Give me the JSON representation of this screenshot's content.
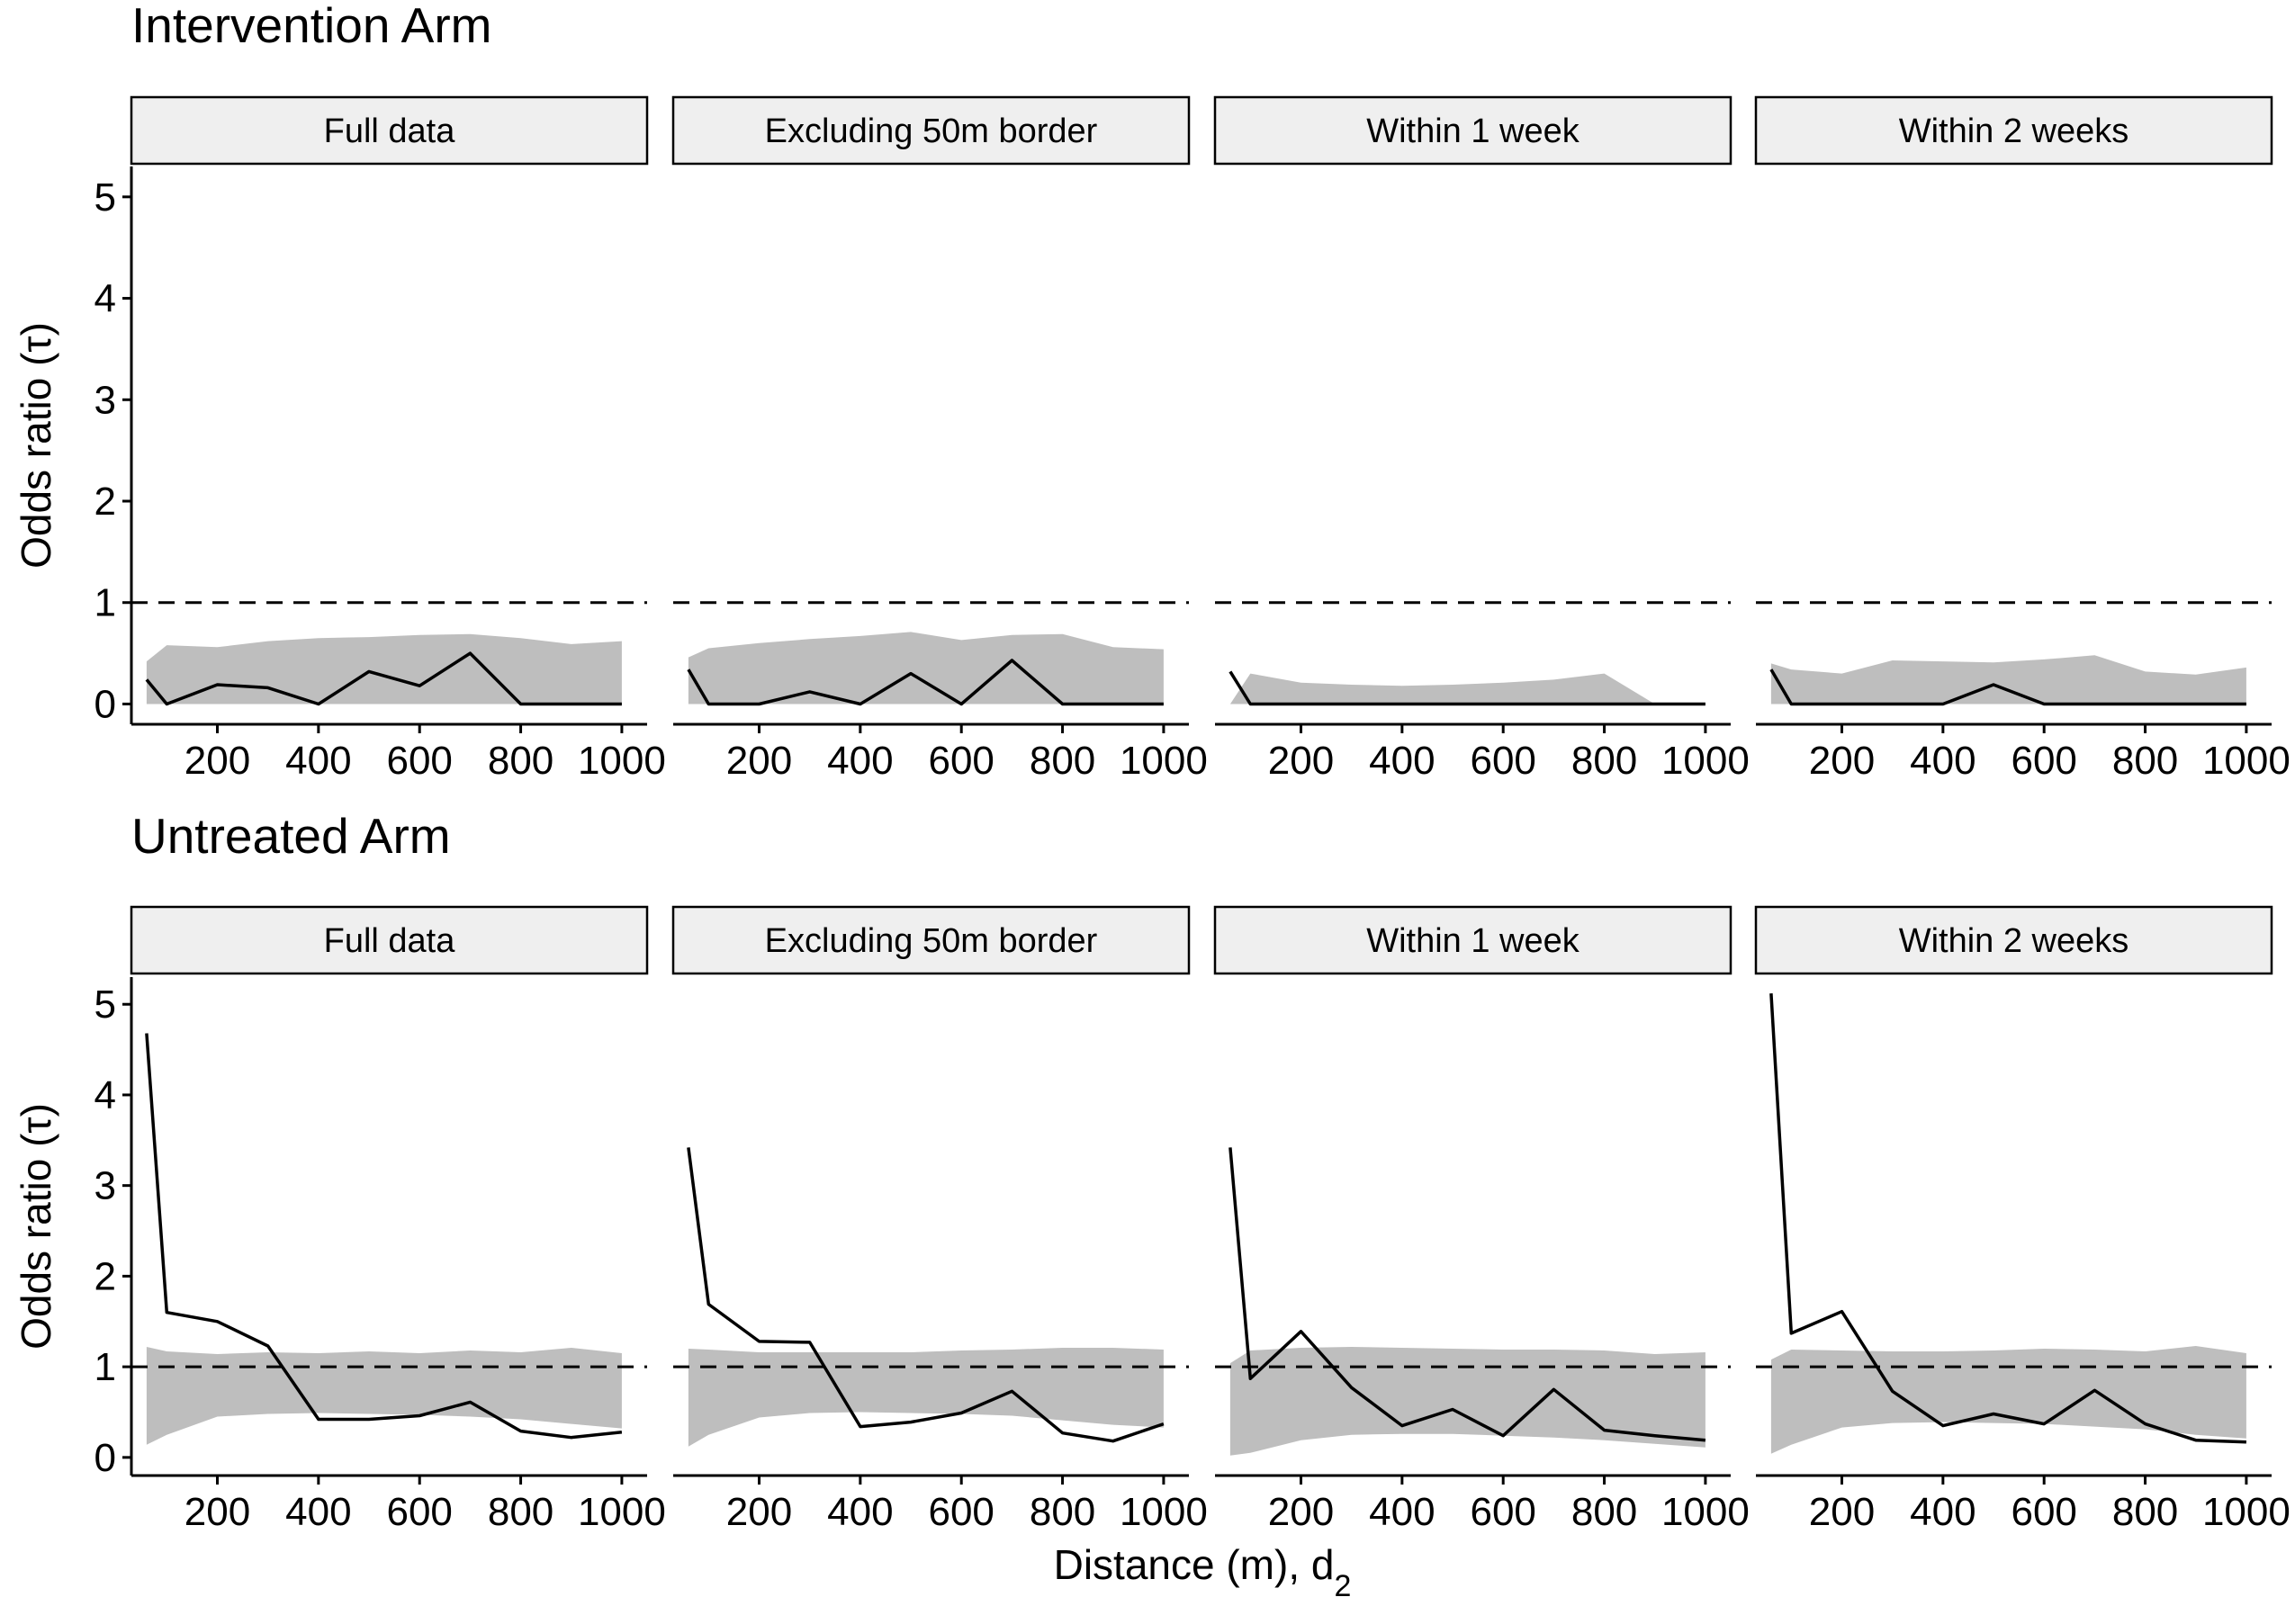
{
  "chart_data": {
    "type": "line",
    "xlabel": "Distance (m), d",
    "xlabel_subscript": "2",
    "ylabel": "Odds ratio (τ)",
    "x_ticks": [
      200,
      400,
      600,
      800,
      1000
    ],
    "y_ticks": [
      0,
      1,
      2,
      3,
      4,
      5
    ],
    "xlim": [
      30,
      1050
    ],
    "ylim": [
      -0.2,
      5.3
    ],
    "reference_line": 1,
    "x": [
      60,
      100,
      200,
      300,
      400,
      500,
      600,
      700,
      800,
      900,
      1000
    ],
    "rows": [
      {
        "title": "Intervention Arm",
        "panels": [
          {
            "strip": "Full data",
            "line": [
              0.24,
              0,
              0.19,
              0.16,
              0,
              0.32,
              0.18,
              0.5,
              0,
              0,
              0
            ],
            "band_low": [
              0,
              0,
              0,
              0,
              0,
              0,
              0,
              0,
              0,
              0,
              0
            ],
            "band_high": [
              0.42,
              0.58,
              0.56,
              0.62,
              0.65,
              0.66,
              0.68,
              0.69,
              0.65,
              0.59,
              0.62
            ]
          },
          {
            "strip": "Excluding 50m border",
            "line": [
              0.34,
              0,
              0,
              0.12,
              0,
              0.3,
              0,
              0.43,
              0,
              0,
              0
            ],
            "band_low": [
              0,
              0,
              0,
              0,
              0,
              0,
              0,
              0,
              0,
              0,
              0
            ],
            "band_high": [
              0.46,
              0.55,
              0.6,
              0.64,
              0.67,
              0.71,
              0.63,
              0.68,
              0.69,
              0.56,
              0.54
            ]
          },
          {
            "strip": "Within 1 week",
            "line": [
              0.32,
              0,
              0,
              0,
              0,
              0,
              0,
              0,
              0,
              0,
              0
            ],
            "band_low": [
              0,
              0,
              0,
              0,
              0,
              0,
              0,
              0,
              0,
              0,
              0
            ],
            "band_high": [
              0,
              0.3,
              0.21,
              0.19,
              0.18,
              0.19,
              0.21,
              0.24,
              0.3,
              0,
              0
            ]
          },
          {
            "strip": "Within 2 weeks",
            "line": [
              0.34,
              0,
              0,
              0,
              0,
              0.19,
              0,
              0,
              0,
              0,
              0
            ],
            "band_low": [
              0,
              0,
              0,
              0,
              0,
              0,
              0,
              0,
              0,
              0,
              0
            ],
            "band_high": [
              0.4,
              0.34,
              0.3,
              0.43,
              0.42,
              0.41,
              0.44,
              0.48,
              0.32,
              0.29,
              0.36
            ]
          }
        ]
      },
      {
        "title": "Untreated Arm",
        "panels": [
          {
            "strip": "Full data",
            "line": [
              4.68,
              1.6,
              1.5,
              1.23,
              0.42,
              0.42,
              0.46,
              0.61,
              0.29,
              0.22,
              0.28
            ],
            "band_low": [
              0.14,
              0.25,
              0.45,
              0.48,
              0.49,
              0.48,
              0.47,
              0.45,
              0.42,
              0.37,
              0.32
            ],
            "band_high": [
              1.22,
              1.17,
              1.14,
              1.16,
              1.15,
              1.17,
              1.15,
              1.18,
              1.16,
              1.21,
              1.15
            ]
          },
          {
            "strip": "Excluding 50m border",
            "line": [
              3.42,
              1.69,
              1.28,
              1.27,
              0.34,
              0.39,
              0.49,
              0.73,
              0.27,
              0.18,
              0.37
            ],
            "band_low": [
              0.12,
              0.25,
              0.44,
              0.49,
              0.5,
              0.49,
              0.48,
              0.46,
              0.41,
              0.36,
              0.33
            ],
            "band_high": [
              1.2,
              1.19,
              1.16,
              1.16,
              1.16,
              1.16,
              1.18,
              1.19,
              1.21,
              1.21,
              1.19
            ]
          },
          {
            "strip": "Within 1 week",
            "line": [
              3.42,
              0.87,
              1.39,
              0.77,
              0.35,
              0.53,
              0.24,
              0.75,
              0.3,
              0.24,
              0.19
            ],
            "band_low": [
              0.02,
              0.05,
              0.19,
              0.25,
              0.26,
              0.26,
              0.24,
              0.22,
              0.19,
              0.15,
              0.11
            ],
            "band_high": [
              1.04,
              1.18,
              1.21,
              1.22,
              1.21,
              1.2,
              1.19,
              1.19,
              1.18,
              1.14,
              1.16
            ]
          },
          {
            "strip": "Within 2 weeks",
            "line": [
              5.12,
              1.37,
              1.61,
              0.73,
              0.35,
              0.48,
              0.37,
              0.74,
              0.37,
              0.19,
              0.17
            ],
            "band_low": [
              0.04,
              0.14,
              0.33,
              0.38,
              0.39,
              0.38,
              0.37,
              0.34,
              0.31,
              0.25,
              0.21
            ],
            "band_high": [
              1.08,
              1.19,
              1.18,
              1.17,
              1.17,
              1.18,
              1.2,
              1.19,
              1.17,
              1.23,
              1.15
            ]
          }
        ]
      }
    ]
  },
  "colors": {
    "band": "#bebebe",
    "line": "#000000",
    "strip_fill": "#efefef",
    "strip_border": "#000000"
  }
}
